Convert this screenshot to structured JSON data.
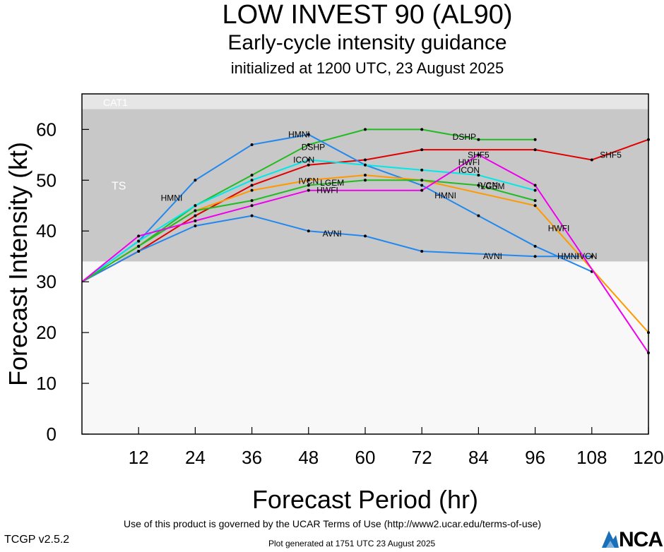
{
  "titles": {
    "main": "LOW INVEST 90 (AL90)",
    "sub": "Early-cycle intensity guidance",
    "init": "initialized at 1200 UTC, 23 August 2025"
  },
  "footer": {
    "terms": "Use of this product is governed by the UCAR Terms of Use (http://www2.ucar.edu/terms-of-use)",
    "version": "TCGP v2.5.2",
    "generated": "Plot generated at 1751 UTC   23 August 2025",
    "logo": "NCAR"
  },
  "chart_data": {
    "type": "line",
    "xlabel": "Forecast Period (hr)",
    "ylabel": "Forecast Intensity (kt)",
    "xlim": [
      0,
      120
    ],
    "ylim": [
      0,
      67
    ],
    "xticks": [
      12,
      24,
      36,
      48,
      60,
      72,
      84,
      96,
      108,
      120
    ],
    "yticks": [
      0,
      10,
      20,
      30,
      40,
      50,
      60
    ],
    "bands": [
      {
        "label": "TS",
        "from": 34,
        "to": 64,
        "color": "#c8c8c8"
      },
      {
        "label": "CAT1",
        "from": 64,
        "to": 67,
        "color": "#e6e6e6"
      }
    ],
    "series": [
      {
        "name": "SHF5",
        "color": "#e00000",
        "x": [
          0,
          12,
          24,
          36,
          48,
          60,
          72,
          96,
          108,
          120
        ],
        "y": [
          30,
          36,
          43,
          49,
          53,
          54,
          56,
          56,
          54,
          58
        ],
        "labels": [
          [
            84,
            55
          ],
          [
            112,
            55
          ]
        ]
      },
      {
        "name": "DSHP",
        "color": "#22bb22",
        "x": [
          0,
          12,
          24,
          36,
          48,
          60,
          72,
          84,
          96
        ],
        "y": [
          30,
          37,
          45,
          51,
          57,
          60,
          60,
          58,
          58
        ],
        "labels": [
          [
            81,
            58.5
          ],
          [
            49,
            56.5
          ]
        ]
      },
      {
        "name": "HMNI",
        "color": "#2288ee",
        "x": [
          0,
          12,
          24,
          36,
          48,
          60,
          72,
          84,
          96,
          108
        ],
        "y": [
          30,
          38,
          50,
          57,
          59,
          53,
          49,
          43,
          37,
          32
        ],
        "labels": [
          [
            46,
            59
          ],
          [
            19,
            46.5
          ],
          [
            77,
            47
          ],
          [
            103,
            35
          ]
        ]
      },
      {
        "name": "AVNI",
        "color": "#2288ee",
        "x": [
          0,
          12,
          24,
          36,
          48,
          60,
          72,
          96,
          108
        ],
        "y": [
          30,
          36,
          41,
          43,
          40,
          39,
          36,
          35,
          35
        ],
        "labels": [
          [
            53,
            39.5
          ],
          [
            87,
            35
          ]
        ]
      },
      {
        "name": "ICON",
        "color": "#00e8e8",
        "x": [
          0,
          12,
          24,
          36,
          48,
          60,
          72,
          84,
          96
        ],
        "y": [
          30,
          38,
          45,
          50,
          54,
          53,
          52,
          51,
          48
        ],
        "labels": [
          [
            47,
            54
          ],
          [
            82,
            52
          ]
        ]
      },
      {
        "name": "IVCN",
        "color": "#ff9900",
        "x": [
          0,
          12,
          24,
          36,
          48,
          60,
          72,
          96,
          120
        ],
        "y": [
          30,
          37,
          44,
          48,
          50,
          51,
          50,
          45,
          20
        ],
        "labels": [
          [
            48,
            49.8
          ],
          [
            86,
            49
          ],
          [
            107,
            35
          ]
        ]
      },
      {
        "name": "LGEM",
        "color": "#22bb22",
        "x": [
          0,
          12,
          24,
          36,
          48,
          60,
          72,
          84,
          96
        ],
        "y": [
          30,
          37,
          44,
          46,
          49,
          50,
          50,
          49,
          46
        ],
        "labels": [
          [
            53,
            49.5
          ],
          [
            87,
            48.8
          ]
        ]
      },
      {
        "name": "HWFI",
        "color": "#ee00ee",
        "x": [
          0,
          12,
          24,
          36,
          48,
          72,
          84,
          96,
          120
        ],
        "y": [
          30,
          39,
          42,
          45,
          48,
          48,
          55,
          49,
          16
        ],
        "labels": [
          [
            52,
            48
          ],
          [
            82,
            53.5
          ],
          [
            101,
            40.5
          ]
        ]
      }
    ]
  }
}
